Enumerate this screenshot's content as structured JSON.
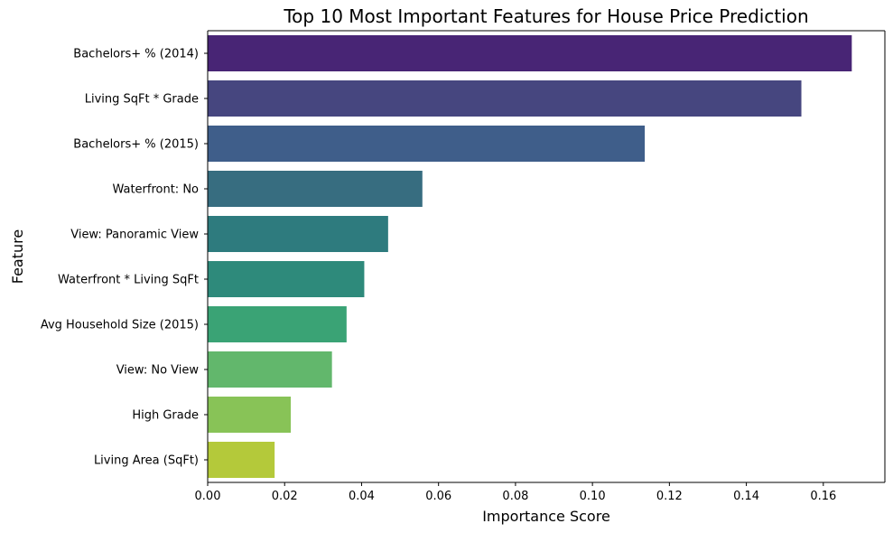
{
  "chart_data": {
    "type": "bar",
    "orientation": "horizontal",
    "title": "Top 10 Most Important Features for House Price Prediction",
    "xlabel": "Importance Score",
    "ylabel": "Feature",
    "xlim": [
      0,
      0.176
    ],
    "xticks": [
      0.0,
      0.02,
      0.04,
      0.06,
      0.08,
      0.1,
      0.12,
      0.14,
      0.16
    ],
    "xtick_labels": [
      "0.00",
      "0.02",
      "0.04",
      "0.06",
      "0.08",
      "0.10",
      "0.12",
      "0.14",
      "0.16"
    ],
    "grid": false,
    "categories": [
      "Bachelors+ % (2014)",
      "Living SqFt * Grade",
      "Bachelors+ % (2015)",
      "Waterfront: No",
      "View: Panoramic View",
      "Waterfront * Living SqFt",
      "Avg Household Size (2015)",
      "View: No View",
      "High Grade",
      "Living Area (SqFt)"
    ],
    "values": [
      0.1674,
      0.1543,
      0.1136,
      0.0558,
      0.0469,
      0.0407,
      0.0361,
      0.0323,
      0.0216,
      0.0174
    ],
    "colors": [
      "#482575",
      "#46467f",
      "#3f5e8a",
      "#376d80",
      "#2e7b7e",
      "#2e8a7b",
      "#3aa375",
      "#62b76c",
      "#88c357",
      "#b4c93a"
    ]
  }
}
